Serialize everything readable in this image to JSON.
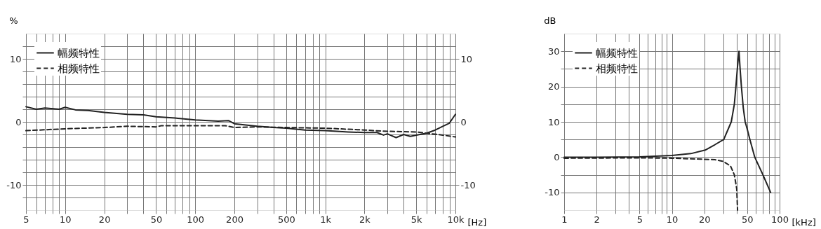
{
  "chart_data": [
    {
      "type": "line",
      "ylabel": "%",
      "xlabel": "[Hz]",
      "log": "x",
      "grid": true,
      "legend": "top left",
      "xlim": [
        5,
        10000
      ],
      "ylim": [
        -14,
        14
      ],
      "y2lim": [
        -14,
        14
      ],
      "y2ticks": [
        -10,
        0,
        10
      ],
      "xticks": [
        5,
        {
          "value": 6,
          "label": null
        },
        {
          "value": 7,
          "label": null
        },
        {
          "value": 8,
          "label": null
        },
        {
          "value": 9,
          "label": null
        },
        10,
        20,
        {
          "value": 30,
          "label": null
        },
        {
          "value": 40,
          "label": null
        },
        50,
        {
          "value": 60,
          "label": null
        },
        {
          "value": 70,
          "label": null
        },
        {
          "value": 80,
          "label": null
        },
        {
          "value": 90,
          "label": null
        },
        100,
        200,
        {
          "value": 300,
          "label": null
        },
        {
          "value": 400,
          "label": null
        },
        500,
        {
          "value": 600,
          "label": null
        },
        {
          "value": 700,
          "label": null
        },
        {
          "value": 800,
          "label": null
        },
        {
          "value": 900,
          "label": null
        },
        {
          "value": 1000,
          "label": "1k"
        },
        {
          "value": 2000,
          "label": "2k"
        },
        {
          "value": 3000,
          "label": null
        },
        {
          "value": 4000,
          "label": null
        },
        {
          "value": 5000,
          "label": "5k"
        },
        {
          "value": 6000,
          "label": null
        },
        {
          "value": 7000,
          "label": null
        },
        {
          "value": 8000,
          "label": null
        },
        {
          "value": 9000,
          "label": null
        },
        {
          "value": 10000,
          "label": "10k"
        }
      ],
      "yticks": [
        {
          "value": -12,
          "label": null
        },
        -10,
        {
          "value": -8,
          "label": null
        },
        {
          "value": -6,
          "label": null
        },
        {
          "value": -4,
          "label": null
        },
        {
          "value": -2,
          "label": null
        },
        0,
        {
          "value": 2,
          "label": null
        },
        {
          "value": 4,
          "label": null
        },
        {
          "value": 6,
          "label": null
        },
        {
          "value": 8,
          "label": null
        },
        10,
        {
          "value": 12,
          "label": null
        }
      ],
      "series": [
        {
          "name": "幅频特性",
          "color": "#222222",
          "line_style": "solid",
          "x": [
            5,
            6,
            7,
            9,
            10,
            12,
            15,
            20,
            30,
            40,
            50,
            70,
            100,
            150,
            180,
            200,
            300,
            400,
            500,
            700,
            1000,
            1500,
            2000,
            2500,
            2800,
            3000,
            3500,
            4000,
            4500,
            5000,
            6000,
            7000,
            8000,
            9000,
            10000
          ],
          "values": [
            2.4,
            2.0,
            2.2,
            2.0,
            2.3,
            1.9,
            1.8,
            1.5,
            1.2,
            1.1,
            0.8,
            0.6,
            0.3,
            0.1,
            0.2,
            -0.3,
            -0.7,
            -0.9,
            -1.0,
            -1.3,
            -1.4,
            -1.6,
            -1.7,
            -1.7,
            -2.1,
            -1.9,
            -2.5,
            -2.0,
            -2.3,
            -2.1,
            -1.8,
            -1.3,
            -0.7,
            -0.2,
            1.2
          ]
        },
        {
          "name": "相频特性",
          "color": "#222222",
          "line_style": "dashed",
          "x": [
            5,
            10,
            20,
            30,
            50,
            55,
            100,
            170,
            200,
            300,
            500,
            1000,
            2000,
            3000,
            5000,
            6000,
            8000,
            10000
          ],
          "values": [
            -1.4,
            -1.1,
            -0.9,
            -0.7,
            -0.8,
            -0.6,
            -0.6,
            -0.6,
            -0.9,
            -0.8,
            -0.9,
            -1.0,
            -1.3,
            -1.5,
            -1.6,
            -1.8,
            -2.1,
            -2.4
          ]
        }
      ]
    },
    {
      "type": "line",
      "ylabel": "dB",
      "xlabel": "[kHz]",
      "log": "x",
      "grid": true,
      "legend": "top left",
      "xlim": [
        1,
        100
      ],
      "ylim": [
        -15,
        35
      ],
      "xticks": [
        1,
        2,
        {
          "value": 3,
          "label": null
        },
        {
          "value": 4,
          "label": null
        },
        5,
        {
          "value": 6,
          "label": null
        },
        {
          "value": 7,
          "label": null
        },
        {
          "value": 8,
          "label": null
        },
        {
          "value": 9,
          "label": null
        },
        10,
        20,
        {
          "value": 30,
          "label": null
        },
        {
          "value": 40,
          "label": null
        },
        50,
        {
          "value": 60,
          "label": null
        },
        {
          "value": 70,
          "label": null
        },
        {
          "value": 80,
          "label": null
        },
        {
          "value": 90,
          "label": null
        },
        100
      ],
      "yticks": [
        -10,
        {
          "value": -5,
          "label": null
        },
        0,
        {
          "value": 5,
          "label": null
        },
        10,
        {
          "value": 15,
          "label": null
        },
        20,
        {
          "value": 25,
          "label": null
        },
        30
      ],
      "series": [
        {
          "name": "幅频特性",
          "color": "#222222",
          "line_style": "solid",
          "x": [
            1,
            2,
            5,
            10,
            15,
            20.4,
            25,
            30.3,
            35.6,
            38,
            39.3,
            40.5,
            42,
            43,
            44.2,
            46,
            47.9,
            50,
            53,
            58.8,
            70,
            82.6
          ],
          "values": [
            0,
            0,
            0.1,
            0.5,
            1.0,
            2.0,
            3.5,
            5,
            10,
            15,
            20,
            25,
            30,
            25,
            20,
            14,
            10,
            8,
            5,
            0,
            -5,
            -10
          ]
        },
        {
          "name": "相频特性",
          "color": "#222222",
          "line_style": "dashed",
          "x": [
            1,
            5,
            10,
            20,
            25,
            30,
            35,
            38,
            40,
            40.7
          ],
          "values": [
            -0.3,
            -0.2,
            -0.3,
            -0.6,
            -0.7,
            -1.2,
            -2.5,
            -5,
            -9,
            -15
          ]
        }
      ]
    }
  ]
}
